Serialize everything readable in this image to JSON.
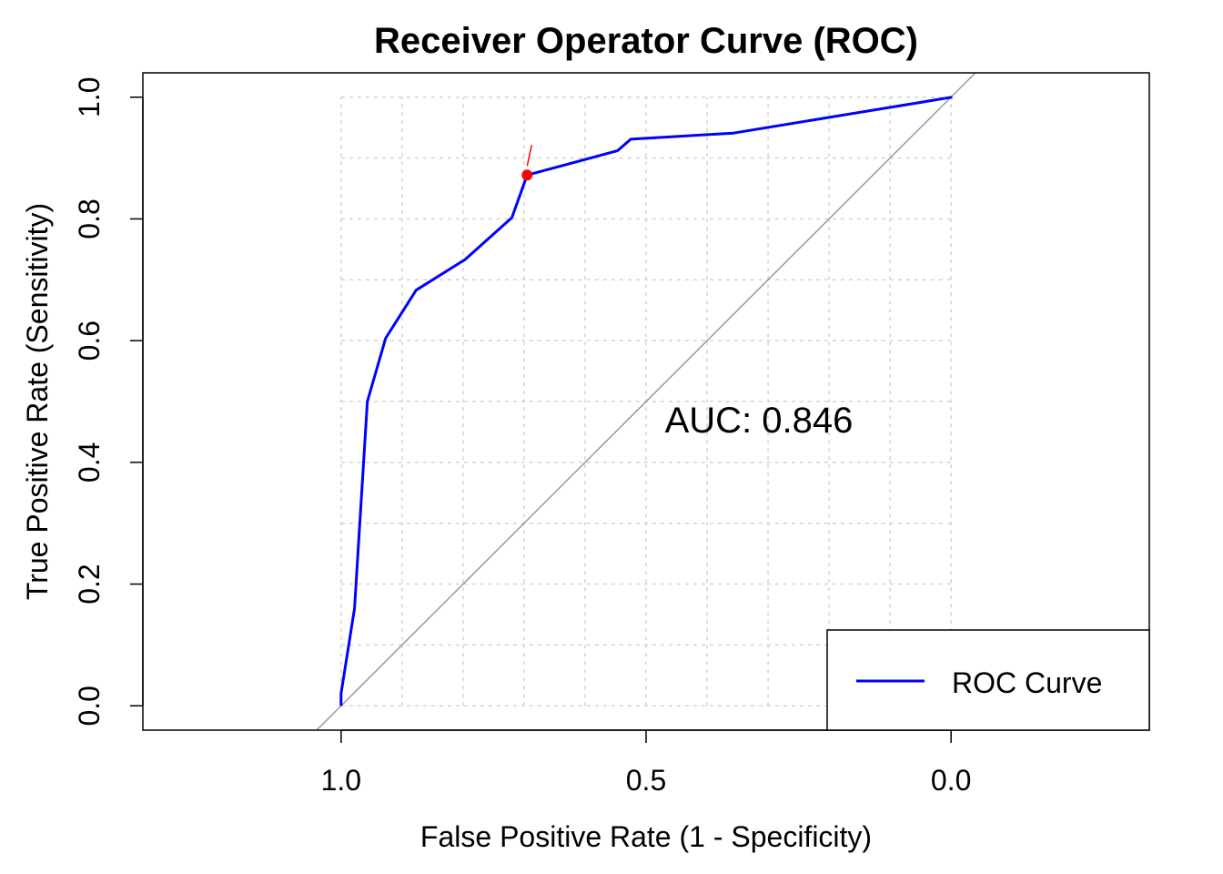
{
  "chart_data": {
    "type": "line",
    "title": "Receiver Operator Curve (ROC)",
    "xlabel": "False Positive Rate (1 - Specificity)",
    "ylabel": "True Positive Rate (Sensitivity)",
    "xaxis_reversed": true,
    "xlim": [
      1.325,
      -0.325
    ],
    "ylim": [
      -0.04,
      1.04
    ],
    "x_ticks": [
      "1.0",
      "0.5",
      "0.0"
    ],
    "y_ticks": [
      "0.0",
      "0.2",
      "0.4",
      "0.6",
      "0.8",
      "1.0"
    ],
    "x_tick_values": [
      1.0,
      0.5,
      0.0
    ],
    "y_tick_values": [
      0.0,
      0.2,
      0.4,
      0.6,
      0.8,
      1.0
    ],
    "grid": true,
    "grid_style": "dotted",
    "grid_x_values": [
      1.0,
      0.9,
      0.8,
      0.7,
      0.6,
      0.5,
      0.4,
      0.3,
      0.2,
      0.1,
      0.0
    ],
    "grid_y_values": [
      0.0,
      0.1,
      0.2,
      0.3,
      0.4,
      0.5,
      0.6,
      0.7,
      0.8,
      0.9,
      1.0
    ],
    "legend_position": "bottom-right",
    "series": [
      {
        "name": "ROC Curve",
        "color": "#0000ff",
        "specificity": [
          1.0,
          1.0,
          0.978,
          0.957,
          0.927,
          0.877,
          0.797,
          0.72,
          0.695,
          0.547,
          0.525,
          0.357,
          -0.002,
          -0.002
        ],
        "sensitivity": [
          0.0,
          0.02,
          0.16,
          0.5,
          0.604,
          0.683,
          0.733,
          0.802,
          0.872,
          0.912,
          0.931,
          0.941,
          1.0,
          1.0
        ]
      }
    ],
    "reference_line": {
      "from": [
        1,
        0
      ],
      "to": [
        0,
        1
      ],
      "color": "#999999"
    },
    "best_threshold_point": {
      "specificity": 0.695,
      "sensitivity": 0.872,
      "color": "#ff0000"
    },
    "annotation": {
      "text": "AUC: 0.846",
      "x": 0.5,
      "y": 0.47
    }
  }
}
